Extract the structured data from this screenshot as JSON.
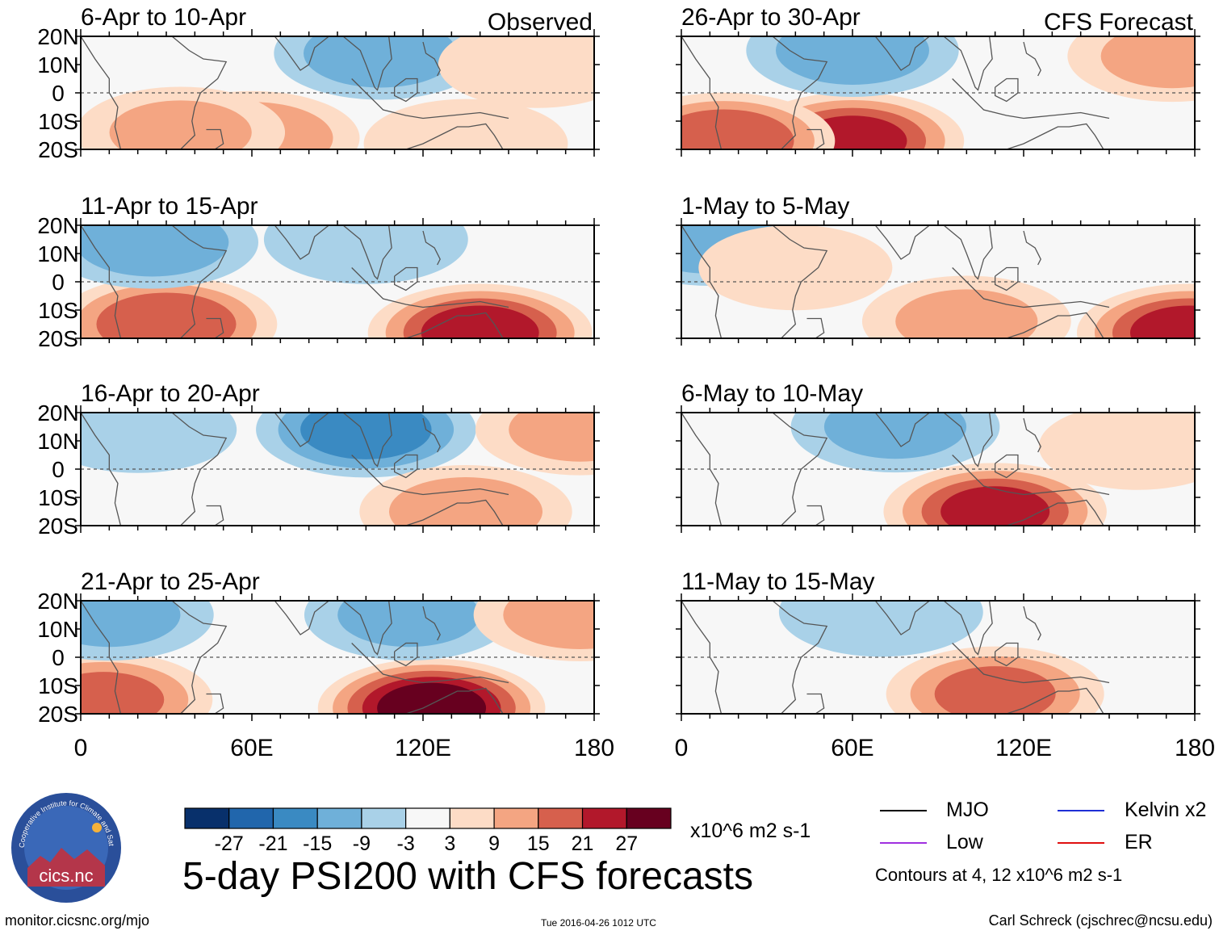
{
  "title": "5-day PSI200 with CFS forecasts",
  "units": "x10^6 m2 s-1",
  "footer": {
    "url": "monitor.cicsnc.org/mjo",
    "timestamp": "Tue 2016-04-26 1012 UTC",
    "author": "Carl Schreck (cjschrec@ncsu.edu)"
  },
  "logo": {
    "text": "cics.nc",
    "ring_text": "Cooperative Institute for Climate and Satellites"
  },
  "legend": {
    "mjo": "MJO",
    "kelvin": "Kelvin x2",
    "low": "Low",
    "er": "ER",
    "note": "Contours at 4, 12 x10^6 m2 s-1"
  },
  "colors": {
    "mjo": "#000000",
    "kelvin": "#1f2fd6",
    "low": "#a030e0",
    "er": "#e01010",
    "land": "#555555"
  },
  "chart_data": {
    "type": "heatmap",
    "variable": "200-hPa streamfunction anomaly (5-day mean)",
    "x_ticks": [
      "0",
      "60E",
      "120E",
      "180"
    ],
    "xlim": [
      0,
      180
    ],
    "y_ticks": [
      "20N",
      "10N",
      "0",
      "10S",
      "20S"
    ],
    "ylim": [
      -20,
      20
    ],
    "colorbar": {
      "levels": [
        "-27",
        "-21",
        "-15",
        "-9",
        "-3",
        "3",
        "9",
        "15",
        "21",
        "27"
      ],
      "colors": [
        "#08306b",
        "#2166ac",
        "#3a8ac2",
        "#6fb0d9",
        "#a9d1e8",
        "#d8e9f3",
        "#f7f7f7",
        "#fddcc6",
        "#f4a582",
        "#d6604d",
        "#b2182b",
        "#67001f"
      ]
    },
    "observed_label": "Observed",
    "forecast_label": "CFS Forecast",
    "panels": [
      {
        "label": "6-Apr to 10-Apr",
        "source": "observed",
        "blobs": [
          {
            "lon": 60,
            "lat": -16,
            "value": 14
          },
          {
            "lon": 35,
            "lat": -14,
            "value": 10
          },
          {
            "lon": 105,
            "lat": 14,
            "value": -12
          },
          {
            "lon": 135,
            "lat": -18,
            "value": 8
          },
          {
            "lon": 160,
            "lat": 10,
            "value": 6
          }
        ]
      },
      {
        "label": "11-Apr to 15-Apr",
        "source": "observed",
        "blobs": [
          {
            "lon": 30,
            "lat": -15,
            "value": 20
          },
          {
            "lon": 140,
            "lat": -18,
            "value": 24
          },
          {
            "lon": 25,
            "lat": 14,
            "value": -12
          },
          {
            "lon": 100,
            "lat": 15,
            "value": -8
          }
        ]
      },
      {
        "label": "16-Apr to 20-Apr",
        "source": "observed",
        "blobs": [
          {
            "lon": 100,
            "lat": 14,
            "value": -18
          },
          {
            "lon": 135,
            "lat": -15,
            "value": 12
          },
          {
            "lon": 175,
            "lat": 14,
            "value": 10
          },
          {
            "lon": 20,
            "lat": 14,
            "value": -6
          }
        ]
      },
      {
        "label": "21-Apr to 25-Apr",
        "source": "observed",
        "blobs": [
          {
            "lon": 123,
            "lat": -18,
            "value": 30
          },
          {
            "lon": 8,
            "lat": -15,
            "value": 16
          },
          {
            "lon": 115,
            "lat": 15,
            "value": -10
          },
          {
            "lon": 10,
            "lat": 15,
            "value": -10
          },
          {
            "lon": 175,
            "lat": 15,
            "value": 12
          }
        ]
      },
      {
        "label": "26-Apr to 30-Apr",
        "source": "forecast",
        "blobs": [
          {
            "lon": 60,
            "lat": -17,
            "value": 22
          },
          {
            "lon": 15,
            "lat": -17,
            "value": 20
          },
          {
            "lon": 60,
            "lat": 15,
            "value": -12
          },
          {
            "lon": 172,
            "lat": 13,
            "value": 10
          }
        ]
      },
      {
        "label": "1-May to 5-May",
        "source": "forecast",
        "blobs": [
          {
            "lon": 10,
            "lat": 15,
            "value": -12
          },
          {
            "lon": 178,
            "lat": -18,
            "value": 24
          },
          {
            "lon": 100,
            "lat": -14,
            "value": 10
          },
          {
            "lon": 40,
            "lat": 5,
            "value": 5
          }
        ]
      },
      {
        "label": "6-May to 10-May",
        "source": "forecast",
        "blobs": [
          {
            "lon": 110,
            "lat": -15,
            "value": 22
          },
          {
            "lon": 75,
            "lat": 15,
            "value": -10
          },
          {
            "lon": 160,
            "lat": 8,
            "value": 6
          }
        ]
      },
      {
        "label": "11-May to 15-May",
        "source": "forecast",
        "blobs": [
          {
            "lon": 110,
            "lat": -13,
            "value": 16
          },
          {
            "lon": 70,
            "lat": 16,
            "value": -8
          }
        ]
      }
    ]
  }
}
